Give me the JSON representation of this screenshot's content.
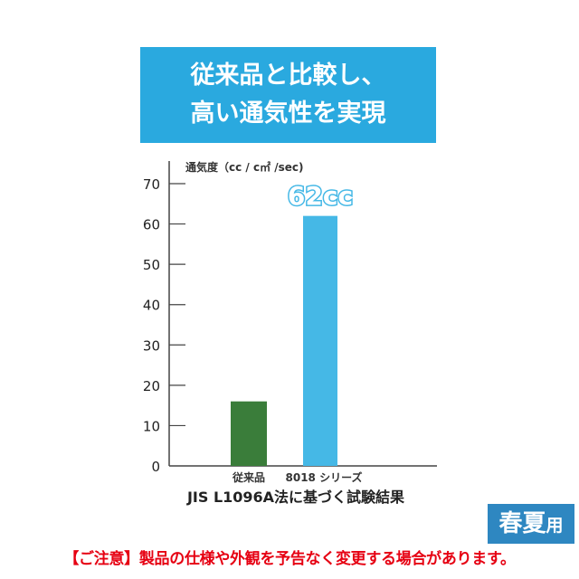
{
  "header": {
    "line1": "従来品と比較し、",
    "line2": "高い通気性を実現"
  },
  "chart_data": {
    "type": "bar",
    "ylabel": "通気度（cc / c㎡ /sec)",
    "categories": [
      "従来品",
      "8018 シリーズ"
    ],
    "values": [
      16,
      62
    ],
    "ylim": [
      0,
      70
    ],
    "yticks": [
      0,
      10,
      20,
      30,
      40,
      50,
      60,
      70
    ],
    "annotation": "62cc",
    "caption": "JIS L1096A法に基づく試験結果",
    "grid": false,
    "colors": [
      "#3a7d3a",
      "#45b8e6"
    ]
  },
  "badge": {
    "main": "春夏",
    "suffix": "用"
  },
  "note": "【ご注意】製品の仕様や外観を予告なく変更する場合があります。"
}
